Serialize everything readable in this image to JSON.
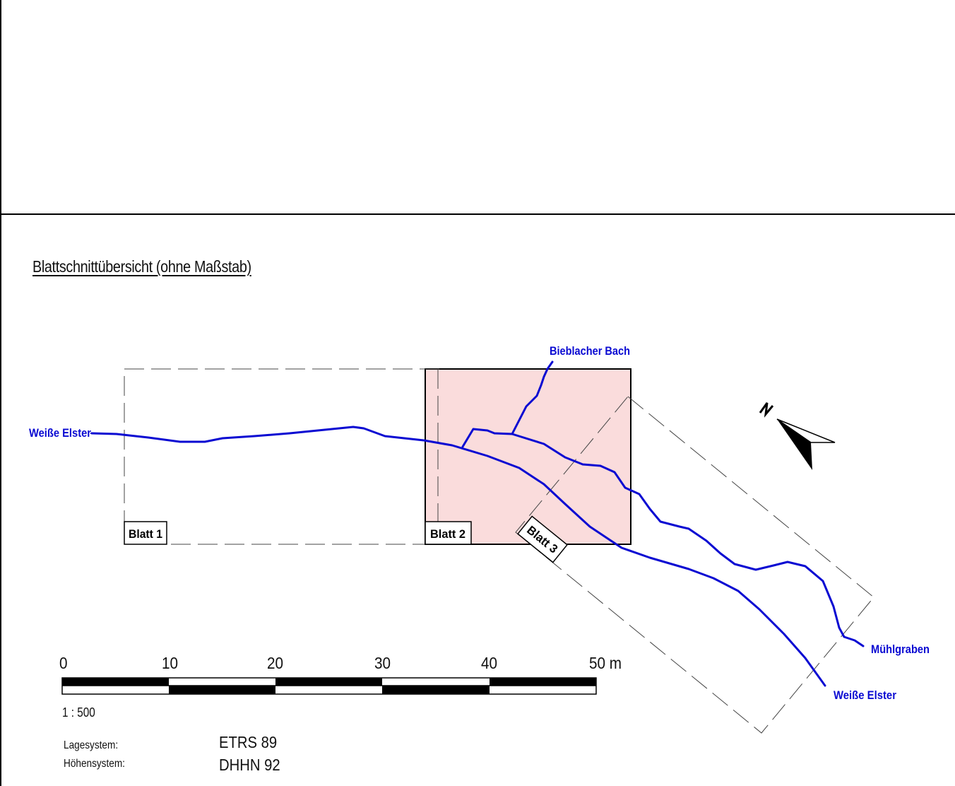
{
  "title": "Blattschnittübersicht (ohne Maßstab)",
  "sheets": [
    {
      "label": "Blatt 1"
    },
    {
      "label": "Blatt 2"
    },
    {
      "label": "Blatt 3"
    }
  ],
  "rivers": {
    "weisse_elster_west": "Weiße Elster",
    "bieblacher_bach": "Bieblacher Bach",
    "muehlgraben": "Mühlgraben",
    "weisse_elster_east": "Weiße Elster"
  },
  "north_arrow": {
    "label": "N",
    "icon": "north-arrow-icon"
  },
  "scale_bar": {
    "ticks": [
      "0",
      "10",
      "20",
      "30",
      "40",
      "50 m"
    ],
    "ratio": "1 : 500"
  },
  "reference": {
    "lage_label": "Lagesystem:",
    "lage_value": "ETRS 89",
    "hoehen_label": "Höhensystem:",
    "hoehen_value": "DHHN 92"
  },
  "colors": {
    "river": "#0a0ad2",
    "highlight_fill": "#fadcdc",
    "frame": "#000000"
  }
}
